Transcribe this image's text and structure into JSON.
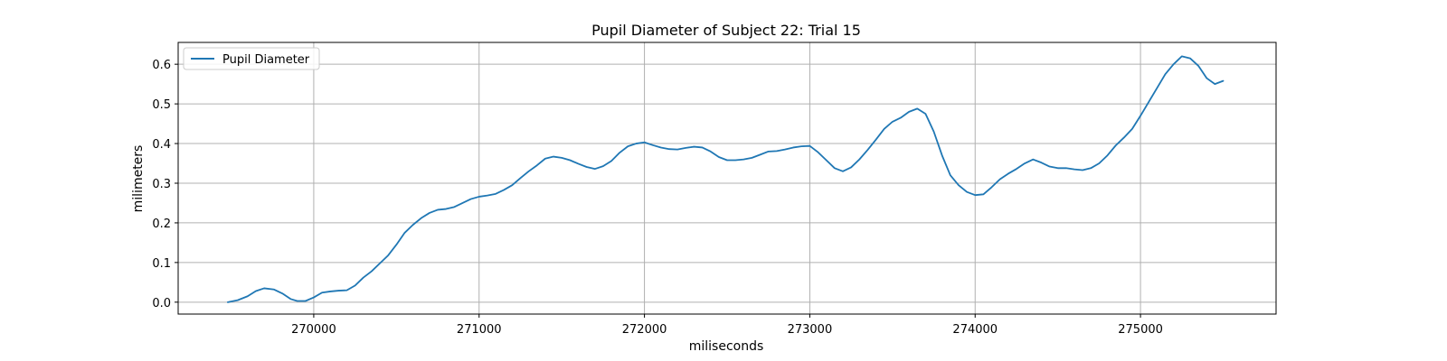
{
  "chart_data": {
    "type": "line",
    "title": "Pupil Diameter of Subject 22: Trial 15",
    "xlabel": "miliseconds",
    "ylabel": "milimeters",
    "xlim": [
      269180,
      275820
    ],
    "ylim": [
      -0.03,
      0.655
    ],
    "xticks": [
      270000,
      271000,
      272000,
      273000,
      274000,
      275000
    ],
    "yticks": [
      0.0,
      0.1,
      0.2,
      0.3,
      0.4,
      0.5,
      0.6
    ],
    "grid": true,
    "legend": {
      "position": "top-left"
    },
    "colors": {
      "series": "#1f77b4",
      "grid": "#b0b0b0"
    },
    "series": [
      {
        "name": "Pupil Diameter",
        "x": [
          269480,
          269540,
          269600,
          269650,
          269700,
          269760,
          269810,
          269860,
          269900,
          269950,
          270000,
          270050,
          270100,
          270150,
          270200,
          270250,
          270300,
          270350,
          270400,
          270450,
          270500,
          270550,
          270600,
          270650,
          270700,
          270750,
          270800,
          270850,
          270900,
          270950,
          271000,
          271050,
          271100,
          271150,
          271200,
          271250,
          271300,
          271350,
          271400,
          271450,
          271500,
          271550,
          271600,
          271650,
          271700,
          271750,
          271800,
          271850,
          271900,
          271950,
          272000,
          272050,
          272100,
          272150,
          272200,
          272250,
          272300,
          272350,
          272400,
          272450,
          272500,
          272550,
          272600,
          272650,
          272700,
          272750,
          272800,
          272850,
          272900,
          272950,
          273000,
          273050,
          273100,
          273150,
          273200,
          273250,
          273300,
          273350,
          273400,
          273450,
          273500,
          273550,
          273600,
          273650,
          273700,
          273750,
          273800,
          273850,
          273900,
          273950,
          274000,
          274050,
          274100,
          274150,
          274200,
          274250,
          274300,
          274350,
          274400,
          274450,
          274500,
          274550,
          274600,
          274650,
          274700,
          274750,
          274800,
          274850,
          274900,
          274950,
          275000,
          275050,
          275100,
          275150,
          275200,
          275250,
          275300,
          275350,
          275400,
          275450,
          275500
        ],
        "y": [
          0.0,
          0.005,
          0.015,
          0.028,
          0.035,
          0.032,
          0.022,
          0.008,
          0.003,
          0.003,
          0.012,
          0.024,
          0.027,
          0.029,
          0.03,
          0.042,
          0.062,
          0.078,
          0.098,
          0.118,
          0.145,
          0.175,
          0.195,
          0.212,
          0.225,
          0.233,
          0.235,
          0.24,
          0.25,
          0.26,
          0.266,
          0.269,
          0.273,
          0.283,
          0.295,
          0.313,
          0.33,
          0.345,
          0.362,
          0.367,
          0.364,
          0.358,
          0.349,
          0.341,
          0.336,
          0.343,
          0.356,
          0.377,
          0.393,
          0.4,
          0.403,
          0.396,
          0.39,
          0.386,
          0.385,
          0.389,
          0.392,
          0.39,
          0.38,
          0.366,
          0.358,
          0.358,
          0.36,
          0.364,
          0.372,
          0.38,
          0.381,
          0.385,
          0.39,
          0.393,
          0.394,
          0.378,
          0.358,
          0.338,
          0.33,
          0.34,
          0.36,
          0.384,
          0.41,
          0.437,
          0.455,
          0.465,
          0.48,
          0.488,
          0.475,
          0.43,
          0.37,
          0.32,
          0.295,
          0.278,
          0.27,
          0.272,
          0.29,
          0.31,
          0.324,
          0.336,
          0.35,
          0.36,
          0.352,
          0.342,
          0.338,
          0.338,
          0.335,
          0.333,
          0.338,
          0.35,
          0.37,
          0.395,
          0.415,
          0.437,
          0.47,
          0.505,
          0.54,
          0.575,
          0.6,
          0.62,
          0.615,
          0.596,
          0.565,
          0.55,
          0.558
        ]
      }
    ]
  }
}
